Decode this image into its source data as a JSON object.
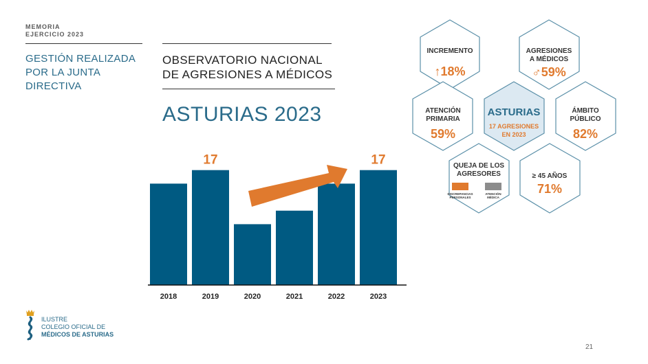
{
  "header": {
    "memoria": "MEMORIA",
    "ejercicio": "EJERCICIO 2023",
    "section_title": "GESTIÓN REALIZADA POR LA JUNTA DIRECTIVA"
  },
  "report": {
    "title_line1": "OBSERVATORIO NACIONAL",
    "title_line2": "DE AGRESIONES A MÉDICOS",
    "region_title": "ASTURIAS 2023"
  },
  "chart_data": {
    "type": "bar",
    "categories": [
      "2018",
      "2019",
      "2020",
      "2021",
      "2022",
      "2023"
    ],
    "values": [
      15,
      17,
      9,
      11,
      15,
      17
    ],
    "data_labels": [
      "",
      "17",
      "",
      "",
      "",
      "17"
    ],
    "ylim": [
      0,
      19
    ],
    "title": "",
    "xlabel": "",
    "ylabel": "",
    "grid": false,
    "colors": {
      "bar": "#005a82",
      "label": "#e07a2e",
      "arrow": "#e07a2e"
    }
  },
  "stats": {
    "incremento": {
      "label1": "INCREMENTO",
      "value": "↑18%"
    },
    "agresiones": {
      "label1": "AGRESIONES",
      "label2": "A MÉDICOS",
      "value": "♂59%"
    },
    "atencion": {
      "label1": "ATENCIÓN",
      "label2": "PRIMARIA",
      "value": "59%"
    },
    "asturias": {
      "label": "ASTURIAS",
      "sub1": "17 AGRESIONES",
      "sub2": "EN 2023"
    },
    "ambito": {
      "label1": "ÁMBITO",
      "label2": "PÚBLICO",
      "value": "82%"
    },
    "queja": {
      "label1": "QUEJA DE LOS",
      "label2": "AGRESORES",
      "legend1a": "DISCREPANCIAS",
      "legend1b": "PERSONALES",
      "legend2a": "ATENCIÓN",
      "legend2b": "MÉDICA"
    },
    "edad": {
      "label1": "≥ 45 AÑOS",
      "value": "71%"
    }
  },
  "footer": {
    "line1": "ILUSTRE",
    "line2": "COLEGIO OFICIAL DE",
    "line3": "MÉDICOS DE ASTURIAS",
    "page_number": "21"
  },
  "colors": {
    "accent_blue": "#2a6b8a",
    "bar_blue": "#005a82",
    "orange": "#e07a2e",
    "hex_border": "#5a8fa8",
    "hex_center_fill": "#dce9f2"
  }
}
